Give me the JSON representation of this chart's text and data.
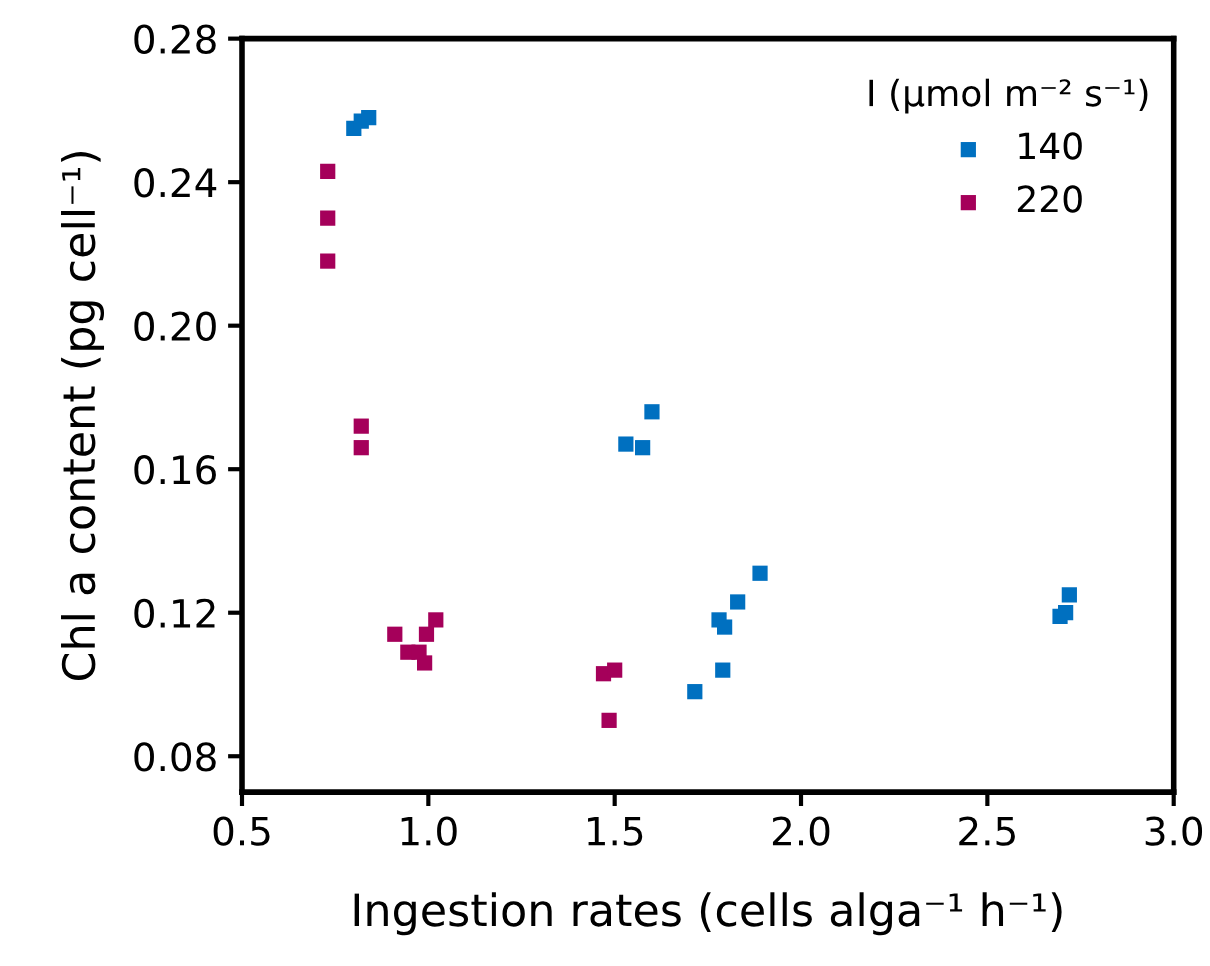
{
  "chart_data": {
    "type": "scatter",
    "xlabel": "Ingestion rates (cells alga⁻¹ h⁻¹)",
    "ylabel": "Chl a content (pg cell⁻¹)",
    "legend_title": "I (μmol m⁻² s⁻¹)",
    "legend": "top right",
    "marker": "square",
    "grid": false,
    "xlim": [
      0.5,
      3.0
    ],
    "xticks": [
      {
        "value": 0.5,
        "label": "0.5"
      },
      {
        "value": 1.0,
        "label": "1.0"
      },
      {
        "value": 1.5,
        "label": "1.5"
      },
      {
        "value": 2.0,
        "label": "2.0"
      },
      {
        "value": 2.5,
        "label": "2.5"
      },
      {
        "value": 3.0,
        "label": "3.0"
      }
    ],
    "ylim": [
      0.07,
      0.28
    ],
    "yticks": [
      {
        "value": 0.08,
        "label": "0.08"
      },
      {
        "value": 0.12,
        "label": "0.12"
      },
      {
        "value": 0.16,
        "label": "0.16"
      },
      {
        "value": 0.2,
        "label": "0.20"
      },
      {
        "value": 0.24,
        "label": "0.24"
      },
      {
        "value": 0.28,
        "label": "0.28"
      }
    ],
    "series": [
      {
        "name": "140",
        "color": "#0070c0",
        "x": [
          0.8,
          0.82,
          0.84,
          1.53,
          1.575,
          1.6,
          1.89,
          1.83,
          1.78,
          1.795,
          1.79,
          1.715,
          2.72,
          2.71,
          2.695
        ],
        "values": [
          0.255,
          0.257,
          0.258,
          0.167,
          0.166,
          0.176,
          0.131,
          0.123,
          0.118,
          0.116,
          0.104,
          0.098,
          0.125,
          0.12,
          0.119
        ]
      },
      {
        "name": "220",
        "color": "#a5005a",
        "x": [
          0.73,
          0.73,
          0.73,
          0.82,
          0.82,
          0.91,
          0.945,
          0.975,
          0.99,
          0.995,
          1.02,
          1.47,
          1.5,
          1.485
        ],
        "values": [
          0.243,
          0.23,
          0.218,
          0.172,
          0.166,
          0.114,
          0.109,
          0.109,
          0.106,
          0.114,
          0.118,
          0.103,
          0.104,
          0.09
        ]
      }
    ]
  }
}
